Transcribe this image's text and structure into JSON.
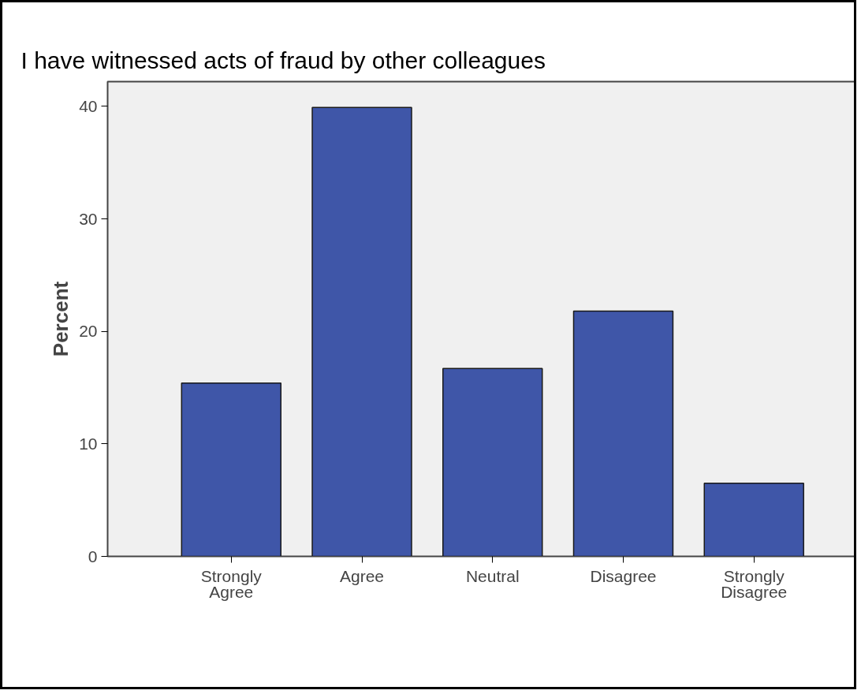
{
  "chart_data": {
    "type": "bar",
    "title": "I have witnessed acts of fraud by other colleagues",
    "ylabel": "Percent",
    "categories": [
      "Strongly Agree",
      "Agree",
      "Neutral",
      "Disagree",
      "Strongly Disagree"
    ],
    "values": [
      15.4,
      39.9,
      16.7,
      21.8,
      6.5
    ],
    "color": "#3f56a8",
    "ylim": [
      0,
      42.2
    ],
    "yticks": [
      0,
      10,
      20,
      30,
      40
    ],
    "grid": false
  }
}
